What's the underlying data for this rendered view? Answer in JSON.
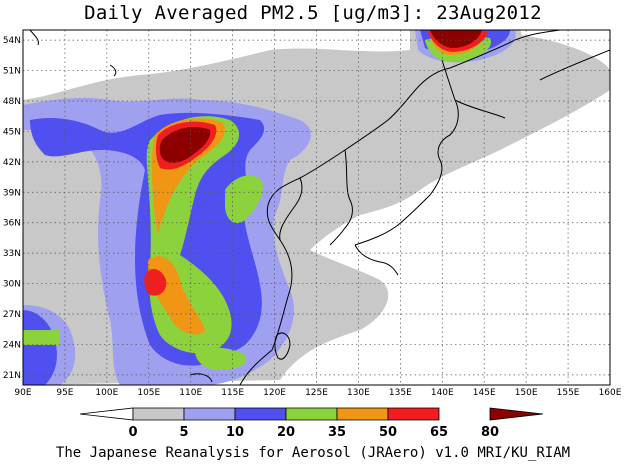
{
  "title": "Daily Averaged PM2.5 [ug/m3]: 23Aug2012",
  "footer": "The Japanese Reanalysis for Aerosol (JRAero) v1.0 MRI/KU_RIAM",
  "map": {
    "lon_range": [
      90,
      160
    ],
    "lat_range": [
      20,
      55
    ],
    "lon_ticks": [
      "90E",
      "95E",
      "100E",
      "105E",
      "110E",
      "115E",
      "120E",
      "125E",
      "130E",
      "135E",
      "140E",
      "145E",
      "150E",
      "155E",
      "160E"
    ],
    "lat_ticks": [
      "54N",
      "51N",
      "48N",
      "45N",
      "42N",
      "39N",
      "36N",
      "33N",
      "30N",
      "27N",
      "24N",
      "21N"
    ],
    "gridlines": true
  },
  "colorbar": {
    "labels": [
      "0",
      "5",
      "10",
      "20",
      "35",
      "50",
      "65",
      "80"
    ],
    "colors": [
      "#ffffff",
      "#c8c8c8",
      "#a0a0f0",
      "#5050f0",
      "#8cd23c",
      "#f09614",
      "#f01e1e",
      "#8c0000"
    ]
  }
}
